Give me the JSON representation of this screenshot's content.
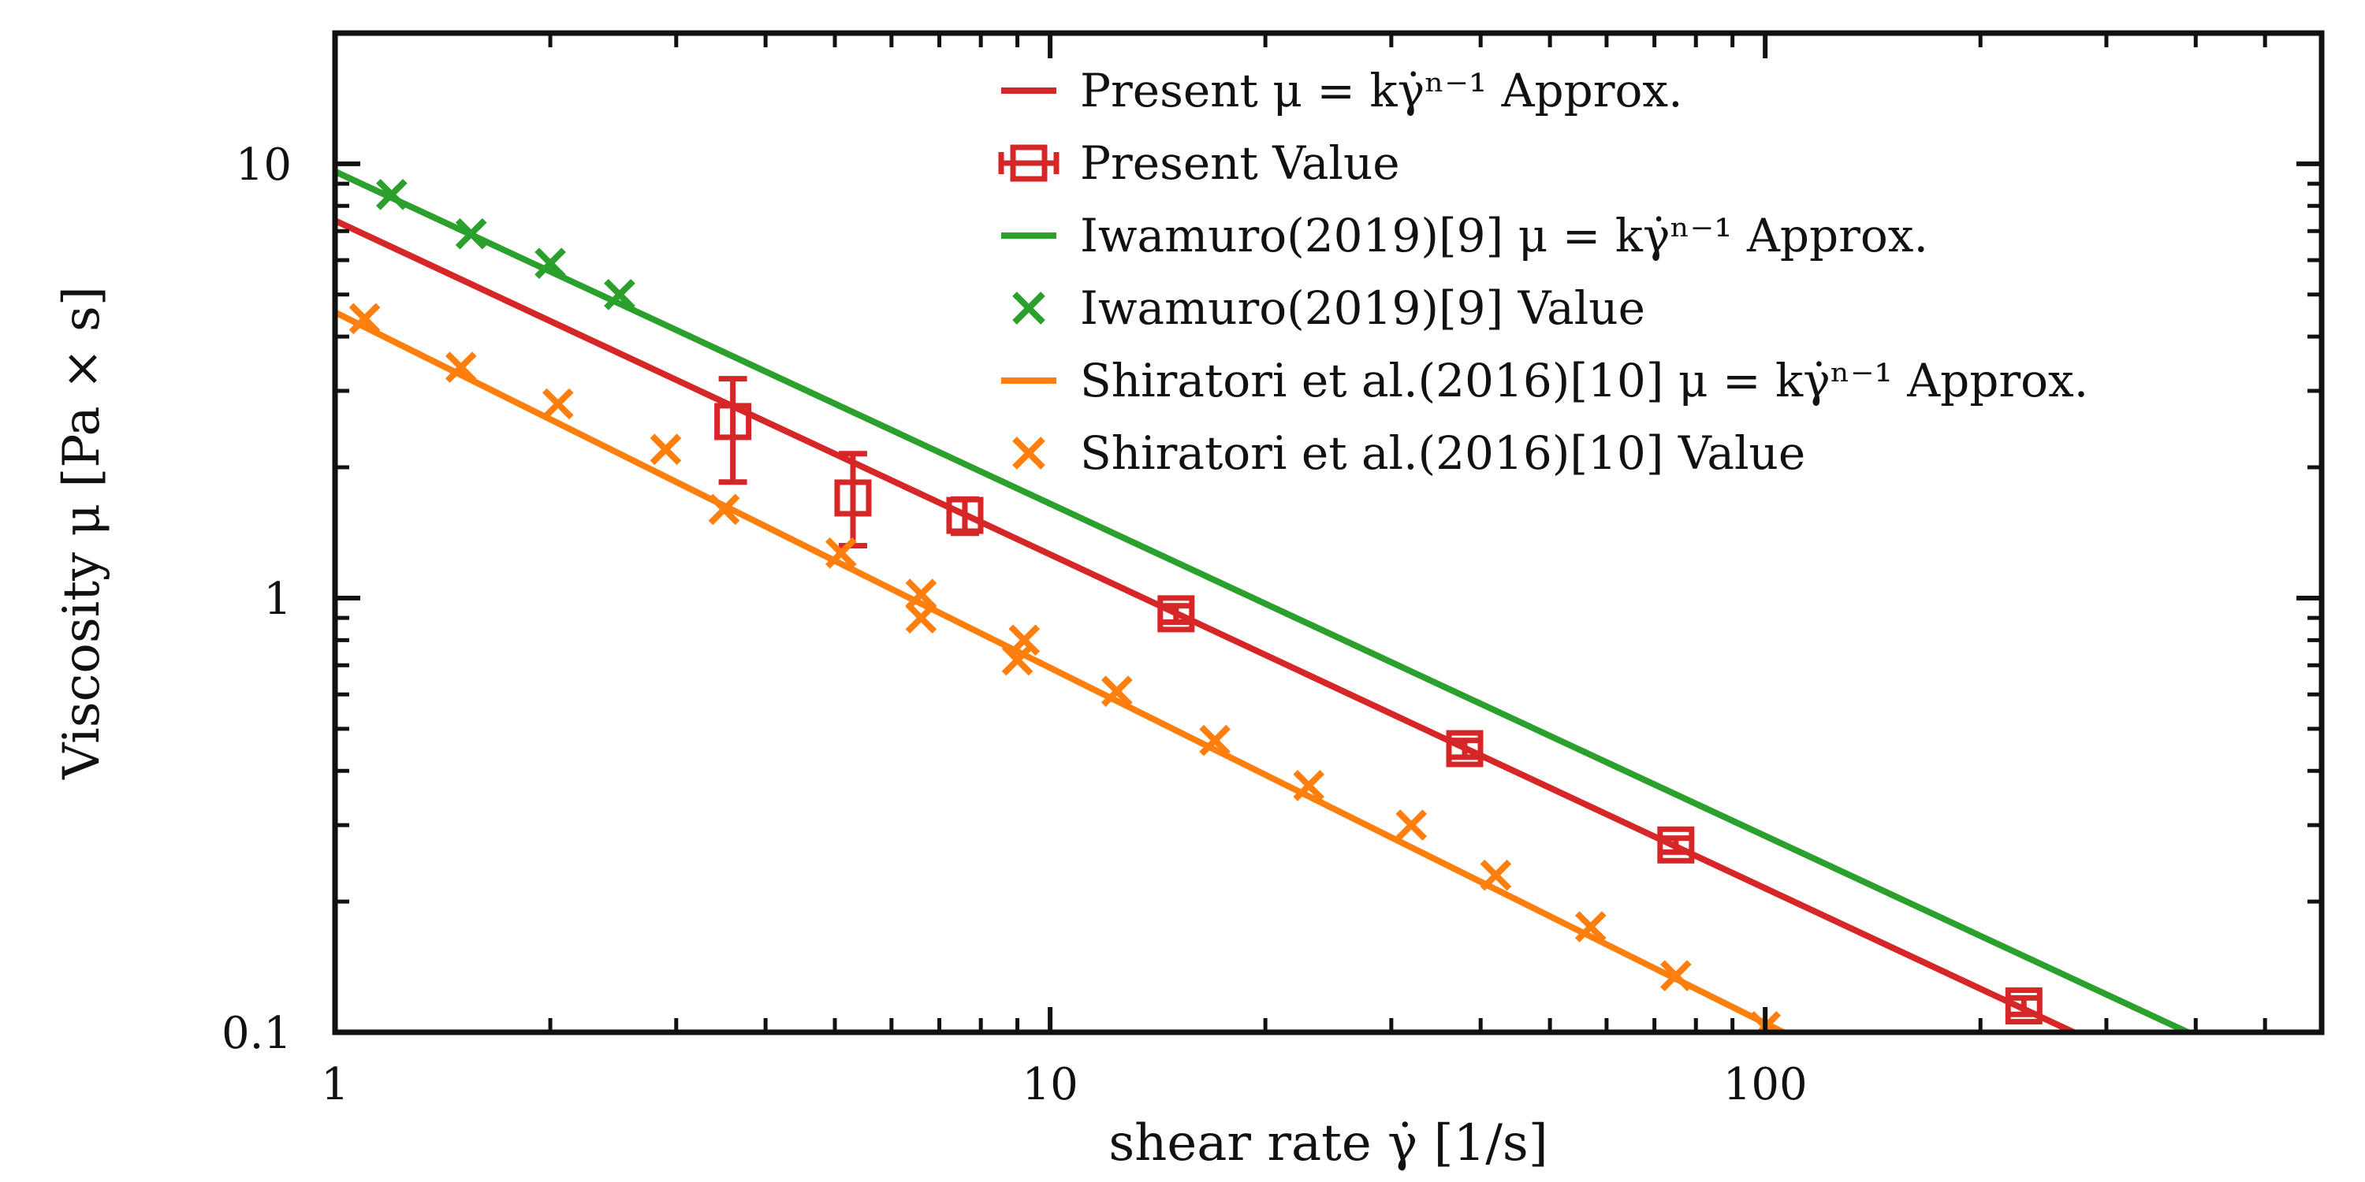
{
  "chart_data": {
    "type": "line",
    "xlabel": "shear rate γ̇ [1/s]",
    "ylabel": "Viscosity μ [Pa × s]",
    "x_scale": "log",
    "y_scale": "log",
    "xlim": [
      1,
      600
    ],
    "ylim": [
      0.1,
      20
    ],
    "x_ticks": [
      {
        "value": 1,
        "label": "1"
      },
      {
        "value": 10,
        "label": "10"
      },
      {
        "value": 100,
        "label": "100"
      }
    ],
    "y_ticks": [
      {
        "value": 0.1,
        "label": "0.1"
      },
      {
        "value": 1,
        "label": "1"
      },
      {
        "value": 10,
        "label": "10"
      }
    ],
    "grid": false,
    "legend_position": "top-right",
    "series": [
      {
        "name": "Present μ = kγ̇ⁿ⁻¹ Approx.",
        "kind": "line",
        "color": "#d62728",
        "points": [
          {
            "x": 1,
            "y": 7.4
          },
          {
            "x": 270,
            "y": 0.1
          }
        ]
      },
      {
        "name": "Present Value",
        "kind": "marker-errorbar",
        "marker": "square",
        "color": "#d62728",
        "points": [
          {
            "x": 3.6,
            "y": 2.55,
            "err_low": 0.7,
            "err_high": 0.65
          },
          {
            "x": 5.3,
            "y": 1.7,
            "err_low": 0.38,
            "err_high": 0.45
          },
          {
            "x": 7.6,
            "y": 1.55,
            "err_low": 0.14,
            "err_high": 0.14
          },
          {
            "x": 15.0,
            "y": 0.92,
            "err_low": 0.04,
            "err_high": 0.04
          },
          {
            "x": 38.0,
            "y": 0.45,
            "err_low": 0.02,
            "err_high": 0.02
          },
          {
            "x": 75.0,
            "y": 0.27,
            "err_low": 0.01,
            "err_high": 0.01
          },
          {
            "x": 230.0,
            "y": 0.115,
            "err_low": 0.005,
            "err_high": 0.005
          }
        ]
      },
      {
        "name": "Iwamuro(2019)[9] μ = kγ̇ⁿ⁻¹ Approx.",
        "kind": "line",
        "color": "#2ca02c",
        "points": [
          {
            "x": 1,
            "y": 9.6
          },
          {
            "x": 390,
            "y": 0.1
          }
        ]
      },
      {
        "name": "Iwamuro(2019)[9] Value",
        "kind": "marker",
        "marker": "x",
        "color": "#2ca02c",
        "points": [
          {
            "x": 1.2,
            "y": 8.5
          },
          {
            "x": 1.55,
            "y": 6.9
          },
          {
            "x": 2.0,
            "y": 5.9
          },
          {
            "x": 2.5,
            "y": 5.0
          }
        ]
      },
      {
        "name": "Shiratori et al.(2016)[10] μ = kγ̇ⁿ⁻¹ Approx.",
        "kind": "line",
        "color": "#ff7f0e",
        "points": [
          {
            "x": 1,
            "y": 4.55
          },
          {
            "x": 106,
            "y": 0.1
          }
        ]
      },
      {
        "name": "Shiratori et al.(2016)[10] Value",
        "kind": "marker",
        "marker": "x",
        "color": "#ff7f0e",
        "points": [
          {
            "x": 1.1,
            "y": 4.4
          },
          {
            "x": 1.5,
            "y": 3.4
          },
          {
            "x": 2.05,
            "y": 2.8
          },
          {
            "x": 2.9,
            "y": 2.2
          },
          {
            "x": 3.5,
            "y": 1.6
          },
          {
            "x": 5.1,
            "y": 1.27
          },
          {
            "x": 6.6,
            "y": 1.02
          },
          {
            "x": 6.6,
            "y": 0.9
          },
          {
            "x": 9.2,
            "y": 0.8
          },
          {
            "x": 9.0,
            "y": 0.72
          },
          {
            "x": 12.4,
            "y": 0.61
          },
          {
            "x": 17.0,
            "y": 0.47
          },
          {
            "x": 23.0,
            "y": 0.37
          },
          {
            "x": 32.0,
            "y": 0.3
          },
          {
            "x": 42.0,
            "y": 0.23
          },
          {
            "x": 57.0,
            "y": 0.175
          },
          {
            "x": 75.0,
            "y": 0.135
          },
          {
            "x": 100.0,
            "y": 0.103
          }
        ]
      }
    ]
  }
}
